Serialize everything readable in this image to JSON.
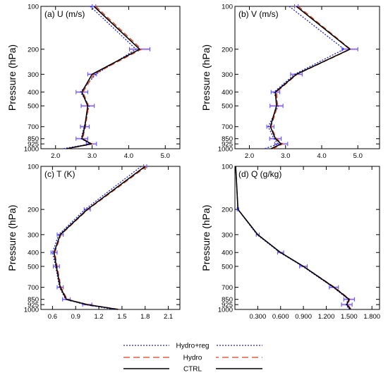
{
  "chart_data": [
    {
      "type": "line",
      "title": "(a) U (m/s)",
      "ylabel": "Pressure (hPa)",
      "yscale": "log",
      "ylim": [
        1000,
        100
      ],
      "xlim": [
        1.6,
        5.4
      ],
      "xticks": [
        2.0,
        3.0,
        4.0,
        5.0
      ],
      "xtick_labels": [
        "2.0",
        "3.0",
        "4.0",
        "5.0"
      ],
      "pressure_levels": [
        100,
        200,
        300,
        400,
        500,
        700,
        850,
        925,
        1000
      ],
      "ytick_labels": [
        "100",
        "200",
        "300",
        "400",
        "500",
        "700",
        "850",
        "925",
        "1000"
      ],
      "series": [
        {
          "name": "CTRL",
          "values": [
            3.05,
            4.3,
            3.0,
            2.72,
            2.88,
            2.8,
            2.72,
            2.98,
            2.3
          ]
        },
        {
          "name": "Hydro",
          "values": [
            3.1,
            4.35,
            3.05,
            2.75,
            2.9,
            2.82,
            2.74,
            3.0,
            2.33
          ]
        },
        {
          "name": "Hydro+reg",
          "values": [
            2.95,
            4.2,
            3.1,
            2.68,
            2.92,
            2.78,
            2.7,
            2.95,
            2.2
          ]
        }
      ],
      "error_bar_halfwidth": [
        0.05,
        0.28,
        0.12,
        0.16,
        0.18,
        0.12,
        0.16,
        0.14,
        0.0
      ]
    },
    {
      "type": "line",
      "title": "(b) V (m/s)",
      "ylabel": "Pressure (hPa)",
      "yscale": "log",
      "ylim": [
        1000,
        100
      ],
      "xlim": [
        1.6,
        5.6
      ],
      "xticks": [
        2.0,
        3.0,
        4.0,
        5.0
      ],
      "xtick_labels": [
        "2.0",
        "3.0",
        "4.0",
        "5.0"
      ],
      "pressure_levels": [
        100,
        200,
        300,
        400,
        500,
        700,
        850,
        925,
        1000
      ],
      "ytick_labels": [
        "100",
        "200",
        "300",
        "400",
        "500",
        "700",
        "850",
        "925",
        "1000"
      ],
      "series": [
        {
          "name": "CTRL",
          "values": [
            3.3,
            4.78,
            3.3,
            2.72,
            2.75,
            2.58,
            2.72,
            2.88,
            2.6
          ]
        },
        {
          "name": "Hydro",
          "values": [
            3.35,
            4.8,
            3.32,
            2.75,
            2.78,
            2.6,
            2.75,
            2.92,
            2.65
          ]
        },
        {
          "name": "Hydro+reg",
          "values": [
            3.1,
            4.62,
            3.25,
            2.68,
            2.8,
            2.52,
            2.68,
            2.8,
            2.42
          ]
        }
      ],
      "error_bar_halfwidth": [
        0.05,
        0.22,
        0.16,
        0.12,
        0.18,
        0.1,
        0.16,
        0.18,
        0.0
      ]
    },
    {
      "type": "line",
      "title": "(c) T (K)",
      "ylabel": "Pressure (hPa)",
      "yscale": "log",
      "ylim": [
        1000,
        100
      ],
      "xlim": [
        0.45,
        2.25
      ],
      "xticks": [
        0.6,
        0.9,
        1.2,
        1.5,
        1.8,
        2.1
      ],
      "xtick_labels": [
        "0.6",
        "0.9",
        "1.2",
        "1.5",
        "1.8",
        "2.1"
      ],
      "pressure_levels": [
        100,
        200,
        300,
        400,
        500,
        700,
        850,
        925,
        1000
      ],
      "ytick_labels": [
        "100",
        "200",
        "300",
        "400",
        "500",
        "700",
        "850",
        "925",
        "1000"
      ],
      "series": [
        {
          "name": "CTRL",
          "values": [
            1.8,
            1.05,
            0.7,
            0.62,
            0.65,
            0.7,
            0.78,
            1.05,
            1.45
          ]
        },
        {
          "name": "Hydro",
          "values": [
            1.82,
            1.06,
            0.71,
            0.63,
            0.66,
            0.71,
            0.79,
            1.06,
            1.47
          ]
        },
        {
          "name": "Hydro+reg",
          "values": [
            1.75,
            1.02,
            0.68,
            0.6,
            0.64,
            0.69,
            0.77,
            1.02,
            1.4
          ]
        }
      ],
      "error_bar_halfwidth": [
        0.02,
        0.04,
        0.04,
        0.04,
        0.04,
        0.04,
        0.05,
        0.06,
        0.0
      ]
    },
    {
      "type": "line",
      "title": "(d) Q (g/kg)",
      "ylabel": "Pressure (hPa)",
      "yscale": "log",
      "ylim": [
        1000,
        100
      ],
      "xlim": [
        0.0,
        1.9
      ],
      "xticks": [
        0.3,
        0.6,
        0.9,
        1.2,
        1.5,
        1.8
      ],
      "xtick_labels": [
        "0.300",
        "0.600",
        "0.900",
        "1.200",
        "1.500",
        "1.800"
      ],
      "pressure_levels": [
        100,
        200,
        300,
        400,
        500,
        700,
        850,
        925,
        1000
      ],
      "ytick_labels": [
        "100",
        "200",
        "300",
        "400",
        "500",
        "700",
        "850",
        "925",
        "1000"
      ],
      "series": [
        {
          "name": "CTRL",
          "values": [
            0.01,
            0.04,
            0.3,
            0.6,
            0.9,
            1.3,
            1.5,
            1.47,
            1.52
          ]
        },
        {
          "name": "Hydro",
          "values": [
            0.01,
            0.04,
            0.3,
            0.6,
            0.9,
            1.31,
            1.51,
            1.48,
            1.53
          ]
        },
        {
          "name": "Hydro+reg",
          "values": [
            0.01,
            0.04,
            0.29,
            0.59,
            0.89,
            1.29,
            1.49,
            1.46,
            1.5
          ]
        }
      ],
      "error_bar_halfwidth": [
        0.0,
        0.01,
        0.02,
        0.04,
        0.05,
        0.06,
        0.07,
        0.07,
        0.0
      ]
    }
  ],
  "legend": {
    "placement": "bottom-center",
    "entries": [
      {
        "name": "Hydro+reg",
        "color": "#2020d0",
        "style": "dotted"
      },
      {
        "name": "Hydro",
        "color": "#e03a1e",
        "style": "dashed"
      },
      {
        "name": "CTRL",
        "color": "#000000",
        "style": "solid"
      }
    ]
  },
  "colors": {
    "ctrl": "#000000",
    "hydro": "#e03a1e",
    "hydro_reg": "#2020d0",
    "error_bar": "#5a5aff",
    "error_shade": "#f4c8f0"
  }
}
